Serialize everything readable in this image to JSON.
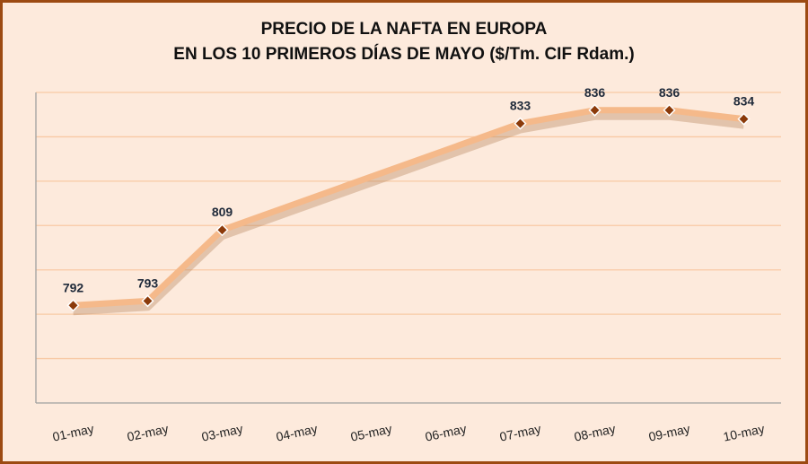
{
  "chart_data": {
    "type": "line",
    "title": [
      "PRECIO DE LA NAFTA EN EUROPA",
      "EN LOS 10 PRIMEROS DÍAS DE MAYO ($/Tm. CIF Rdam.)"
    ],
    "categories": [
      "01-may",
      "02-may",
      "03-may",
      "04-may",
      "05-may",
      "06-may",
      "07-may",
      "08-may",
      "09-may",
      "10-may"
    ],
    "series": [
      {
        "name": "Nafta",
        "values": [
          792,
          793,
          809,
          null,
          null,
          null,
          833,
          836,
          836,
          834
        ]
      }
    ],
    "xlabel": "",
    "ylabel": "",
    "ylim": [
      770,
      840
    ],
    "ystep": 10,
    "grid": true,
    "legend": "none",
    "colors": {
      "background": "#fdeadc",
      "frame": "#9c4a12",
      "line": "#f5b98a",
      "marker": "#8b3a0a",
      "grid": "#f8c9a4"
    }
  }
}
